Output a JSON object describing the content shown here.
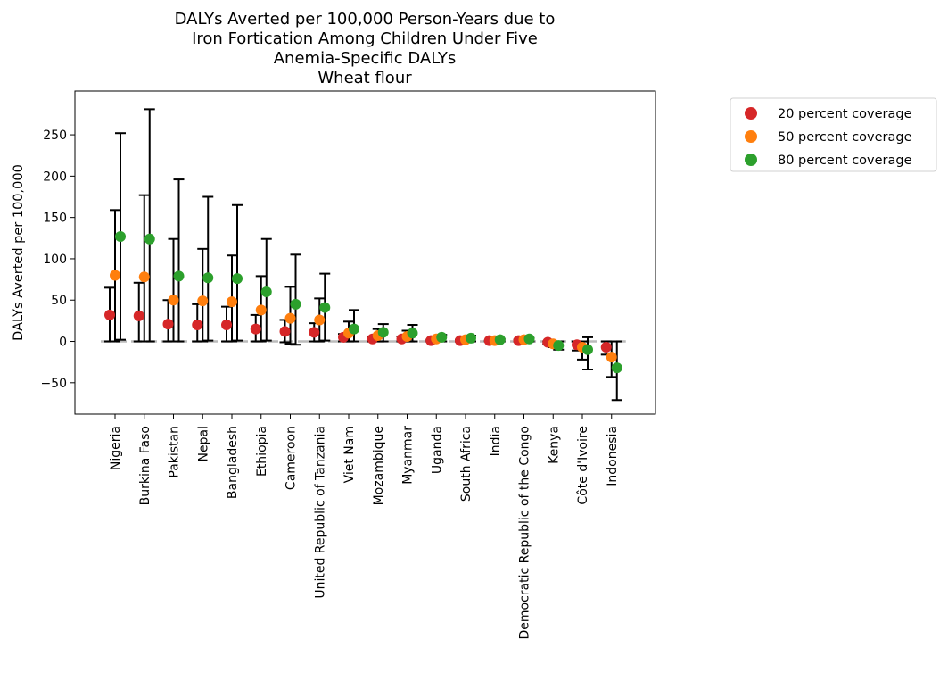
{
  "chart_data": {
    "type": "scatter",
    "title_lines": [
      "DALYs Averted per 100,000 Person-Years due to",
      "Iron Fortication Among Children Under Five",
      "Anemia-Specific DALYs",
      "Wheat flour"
    ],
    "ylabel": "DALYs Averted per 100,000",
    "xlabel": "",
    "ylim": [
      -88,
      303
    ],
    "yticks": [
      -50,
      0,
      50,
      100,
      150,
      200,
      250
    ],
    "grid": false,
    "zero_reference_line": true,
    "legend_position": "upper right, outside plot",
    "categories": [
      "Nigeria",
      "Burkina Faso",
      "Pakistan",
      "Nepal",
      "Bangladesh",
      "Ethiopia",
      "Cameroon",
      "United Republic of Tanzania",
      "Viet Nam",
      "Mozambique",
      "Myanmar",
      "Uganda",
      "South Africa",
      "India",
      "Democratic Republic of the Congo",
      "Kenya",
      "Côte d'Ivoire",
      "Indonesia"
    ],
    "series": [
      {
        "name": "20 percent coverage",
        "color": "#d62728",
        "values": [
          32,
          31,
          21,
          20,
          20,
          15,
          12,
          11,
          5,
          3,
          3,
          1,
          1,
          1,
          1,
          -1,
          -4,
          -7
        ],
        "lower": [
          0,
          0,
          0,
          0,
          0,
          0,
          -1,
          0,
          0,
          0,
          0,
          0,
          0,
          0,
          0,
          -3,
          -11,
          -16
        ],
        "upper": [
          65,
          71,
          50,
          45,
          42,
          32,
          26,
          22,
          9,
          6,
          6,
          2,
          2,
          1,
          2,
          0,
          0,
          0
        ]
      },
      {
        "name": "50 percent coverage",
        "color": "#ff7f0e",
        "values": [
          80,
          78,
          50,
          49,
          48,
          38,
          28,
          26,
          10,
          7,
          6,
          3,
          2,
          1,
          2,
          -3,
          -7,
          -19
        ],
        "lower": [
          0,
          0,
          0,
          0,
          0,
          0,
          -3,
          0,
          0,
          0,
          0,
          0,
          0,
          0,
          0,
          -7,
          -22,
          -43
        ],
        "upper": [
          159,
          177,
          124,
          112,
          104,
          79,
          66,
          52,
          24,
          15,
          13,
          6,
          5,
          2,
          3,
          0,
          0,
          0
        ]
      },
      {
        "name": "80 percent coverage",
        "color": "#2ca02c",
        "values": [
          127,
          124,
          79,
          77,
          76,
          60,
          45,
          41,
          15,
          11,
          10,
          5,
          4,
          2,
          3,
          -5,
          -10,
          -32
        ],
        "lower": [
          2,
          0,
          0,
          1,
          1,
          1,
          -4,
          1,
          0,
          0,
          0,
          0,
          0,
          0,
          0,
          -10,
          -34,
          -71
        ],
        "upper": [
          252,
          281,
          196,
          175,
          165,
          124,
          105,
          82,
          38,
          21,
          20,
          8,
          7,
          3,
          4,
          0,
          5,
          0
        ]
      }
    ]
  }
}
